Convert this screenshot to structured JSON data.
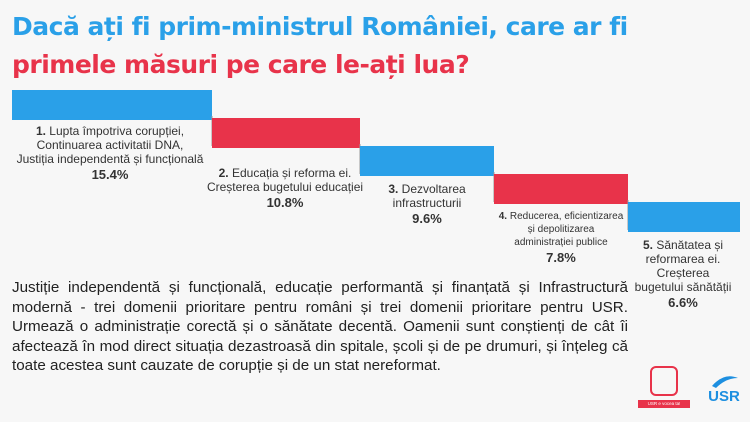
{
  "title": {
    "line1": "Dacă ați fi prim-ministrul României, care ar fi",
    "line2": "primele măsuri pe care le-ați lua?"
  },
  "colors": {
    "blue": "#2aa0e8",
    "red": "#e8334a",
    "text": "#333333"
  },
  "chart_data": {
    "type": "bar",
    "categories": [
      "1. Lupta împotriva corupției, Continuarea activitatii DNA, Justiția independentă și funcțională",
      "2. Educația și reforma ei. Creșterea bugetului educației",
      "3. Dezvoltarea infrastructurii",
      "4. Reducerea, eficientizarea și depolitizarea administrației publice",
      "5. Sănătatea și reformarea ei. Creșterea bugetului sănătății"
    ],
    "values": [
      15.4,
      10.8,
      9.6,
      7.8,
      6.6
    ],
    "unit": "%",
    "labels": [
      {
        "num": "1.",
        "lines": [
          "Lupta împotriva corupției,",
          "Continuarea activitatii DNA,",
          "Justiția independentă și funcțională"
        ],
        "value": "15.4%"
      },
      {
        "num": "2.",
        "lines": [
          "Educația și reforma ei.",
          "Creșterea bugetului educației"
        ],
        "value": "10.8%"
      },
      {
        "num": "3.",
        "lines": [
          "Dezvoltarea",
          "infrastructurii"
        ],
        "value": "9.6%"
      },
      {
        "num": "4.",
        "lines": [
          "Reducerea, eficientizarea",
          "și depolitizarea",
          "administrației publice"
        ],
        "value": "7.8%"
      },
      {
        "num": "5.",
        "lines": [
          "Sănătatea și",
          "reformarea ei. Creșterea",
          "bugetului sănătății"
        ],
        "value": "6.6%"
      }
    ],
    "bar_colors": [
      "#2aa0e8",
      "#e8334a",
      "#2aa0e8",
      "#e8334a",
      "#2aa0e8"
    ]
  },
  "body_text": "Justiție independentă și funcțională, educație performantă și finanțată și Infrastructură modernă - trei domenii prioritare pentru români și trei domenii prioritare pentru USR. Urmează o administrație corectă și o sănătate decentă. Oamenii sunt conștienți de cât îi afectează în mod direct situația dezastroasă din spitale, școli și de pe drumuri, și înțeleg că toate acestea sunt cauzate de corupție și de un stat nereformat.",
  "logos": {
    "campaign_caption": "USR e vocea ta!",
    "party": "USR"
  }
}
